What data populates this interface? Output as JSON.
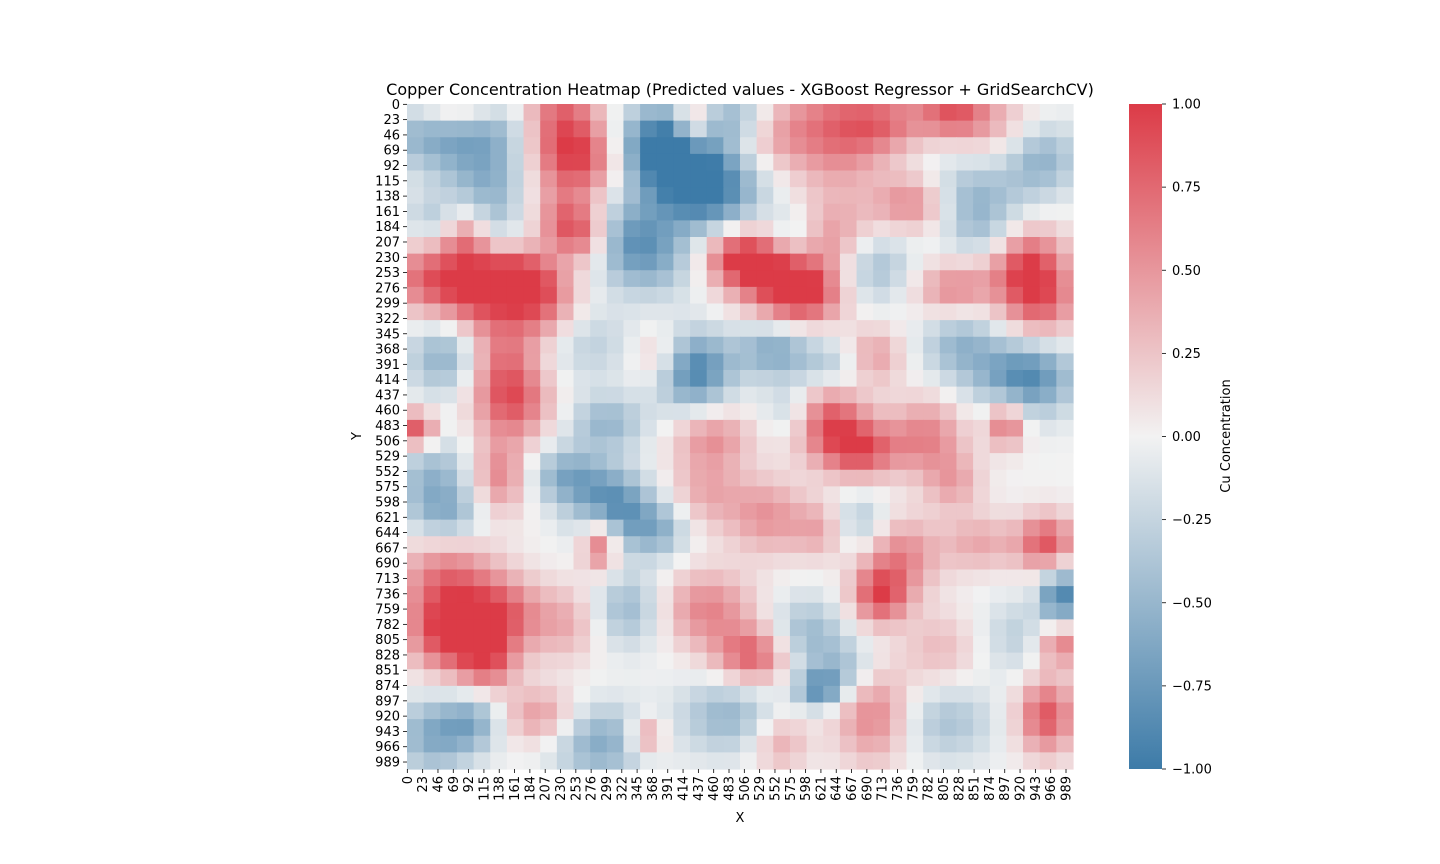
{
  "chart_data": {
    "type": "heatmap",
    "title": "Copper Concentration Heatmap (Predicted values - XGBoost Regressor + GridSearchCV)",
    "xlabel": "X",
    "ylabel": "Y",
    "x_tick_labels": [
      "0",
      "23",
      "46",
      "69",
      "92",
      "115",
      "138",
      "161",
      "184",
      "207",
      "230",
      "253",
      "276",
      "299",
      "322",
      "345",
      "368",
      "391",
      "414",
      "437",
      "460",
      "483",
      "506",
      "529",
      "552",
      "575",
      "598",
      "621",
      "644",
      "667",
      "690",
      "713",
      "736",
      "759",
      "782",
      "805",
      "828",
      "851",
      "874",
      "897",
      "920",
      "943",
      "966",
      "989"
    ],
    "y_tick_labels": [
      "0",
      "23",
      "46",
      "69",
      "92",
      "115",
      "138",
      "161",
      "184",
      "207",
      "230",
      "253",
      "276",
      "299",
      "322",
      "345",
      "368",
      "391",
      "414",
      "437",
      "460",
      "483",
      "506",
      "529",
      "552",
      "575",
      "598",
      "621",
      "644",
      "667",
      "690",
      "713",
      "736",
      "759",
      "782",
      "805",
      "828",
      "851",
      "874",
      "897",
      "920",
      "943",
      "966",
      "989"
    ],
    "x_range": [
      0,
      1000
    ],
    "y_range": [
      0,
      1000
    ],
    "y_inverted": true,
    "grid": false,
    "colorbar": {
      "label": "Cu Concentration",
      "range": [
        -1.0,
        1.0
      ],
      "tick_labels": [
        "1.00",
        "0.75",
        "0.50",
        "0.25",
        "0.00",
        "−0.25",
        "−0.50",
        "−0.75",
        "−1.00"
      ],
      "tick_values": [
        1.0,
        0.75,
        0.5,
        0.25,
        0.0,
        -0.25,
        -0.5,
        -0.75,
        -1.0
      ],
      "colormap": {
        "low": "#3d7ba8",
        "mid": "#f2f2f2",
        "high": "#dc3b47"
      }
    },
    "grid_resolution": 40,
    "field_blobs": [
      {
        "x": 40,
        "y": 40,
        "sx": 60,
        "sy": 40,
        "v": -0.6
      },
      {
        "x": 120,
        "y": 100,
        "sx": 50,
        "sy": 40,
        "v": -0.5
      },
      {
        "x": 230,
        "y": 40,
        "sx": 40,
        "sy": 80,
        "v": 0.8
      },
      {
        "x": 280,
        "y": 80,
        "sx": 40,
        "sy": 40,
        "v": 0.6
      },
      {
        "x": 140,
        "y": 30,
        "sx": 40,
        "sy": 30,
        "v": -0.3
      },
      {
        "x": 70,
        "y": 10,
        "sx": 50,
        "sy": 20,
        "v": 0.5
      },
      {
        "x": 380,
        "y": 60,
        "sx": 50,
        "sy": 40,
        "v": -0.85
      },
      {
        "x": 420,
        "y": 100,
        "sx": 60,
        "sy": 50,
        "v": -0.8
      },
      {
        "x": 460,
        "y": 140,
        "sx": 50,
        "sy": 40,
        "v": -0.6
      },
      {
        "x": 430,
        "y": 30,
        "sx": 20,
        "sy": 30,
        "v": 0.7
      },
      {
        "x": 500,
        "y": 20,
        "sx": 40,
        "sy": 20,
        "v": -0.4
      },
      {
        "x": 560,
        "y": 40,
        "sx": 40,
        "sy": 40,
        "v": 0.4
      },
      {
        "x": 650,
        "y": 40,
        "sx": 50,
        "sy": 60,
        "v": 0.7
      },
      {
        "x": 720,
        "y": 30,
        "sx": 40,
        "sy": 30,
        "v": 0.5
      },
      {
        "x": 820,
        "y": 15,
        "sx": 40,
        "sy": 25,
        "v": 0.8
      },
      {
        "x": 900,
        "y": 40,
        "sx": 50,
        "sy": 40,
        "v": 0.3
      },
      {
        "x": 950,
        "y": 80,
        "sx": 40,
        "sy": 40,
        "v": -0.6
      },
      {
        "x": 850,
        "y": 140,
        "sx": 50,
        "sy": 40,
        "v": -0.5
      },
      {
        "x": 760,
        "y": 150,
        "sx": 40,
        "sy": 30,
        "v": 0.6
      },
      {
        "x": 40,
        "y": 180,
        "sx": 30,
        "sy": 30,
        "v": -0.4
      },
      {
        "x": 90,
        "y": 200,
        "sx": 30,
        "sy": 30,
        "v": 0.6
      },
      {
        "x": 130,
        "y": 180,
        "sx": 30,
        "sy": 40,
        "v": -0.4
      },
      {
        "x": 240,
        "y": 180,
        "sx": 30,
        "sy": 30,
        "v": 0.5
      },
      {
        "x": 270,
        "y": 200,
        "sx": 30,
        "sy": 30,
        "v": 0.6
      },
      {
        "x": 330,
        "y": 200,
        "sx": 50,
        "sy": 40,
        "v": -0.6
      },
      {
        "x": 370,
        "y": 240,
        "sx": 50,
        "sy": 40,
        "v": -0.4
      },
      {
        "x": 500,
        "y": 230,
        "sx": 40,
        "sy": 30,
        "v": 0.9
      },
      {
        "x": 560,
        "y": 260,
        "sx": 50,
        "sy": 40,
        "v": 0.85
      },
      {
        "x": 600,
        "y": 290,
        "sx": 40,
        "sy": 30,
        "v": 0.7
      },
      {
        "x": 640,
        "y": 200,
        "sx": 50,
        "sy": 40,
        "v": 0.5
      },
      {
        "x": 580,
        "y": 200,
        "sx": 30,
        "sy": 30,
        "v": -0.5
      },
      {
        "x": 700,
        "y": 240,
        "sx": 40,
        "sy": 40,
        "v": -0.5
      },
      {
        "x": 820,
        "y": 280,
        "sx": 40,
        "sy": 30,
        "v": 0.6
      },
      {
        "x": 930,
        "y": 240,
        "sx": 40,
        "sy": 40,
        "v": 0.85
      },
      {
        "x": 950,
        "y": 300,
        "sx": 40,
        "sy": 40,
        "v": 0.7
      },
      {
        "x": 870,
        "y": 200,
        "sx": 40,
        "sy": 30,
        "v": -0.3
      },
      {
        "x": 30,
        "y": 260,
        "sx": 40,
        "sy": 40,
        "v": 0.7
      },
      {
        "x": 100,
        "y": 280,
        "sx": 40,
        "sy": 40,
        "v": 0.8
      },
      {
        "x": 160,
        "y": 260,
        "sx": 40,
        "sy": 30,
        "v": 0.9
      },
      {
        "x": 200,
        "y": 300,
        "sx": 40,
        "sy": 40,
        "v": 0.7
      },
      {
        "x": 60,
        "y": 380,
        "sx": 40,
        "sy": 40,
        "v": -0.6
      },
      {
        "x": 140,
        "y": 380,
        "sx": 40,
        "sy": 50,
        "v": 0.6
      },
      {
        "x": 160,
        "y": 450,
        "sx": 40,
        "sy": 40,
        "v": 0.7
      },
      {
        "x": 15,
        "y": 490,
        "sx": 20,
        "sy": 20,
        "v": 0.9
      },
      {
        "x": 270,
        "y": 360,
        "sx": 50,
        "sy": 40,
        "v": -0.3
      },
      {
        "x": 430,
        "y": 400,
        "sx": 40,
        "sy": 40,
        "v": -0.95
      },
      {
        "x": 380,
        "y": 380,
        "sx": 30,
        "sy": 30,
        "v": 0.4
      },
      {
        "x": 550,
        "y": 370,
        "sx": 40,
        "sy": 30,
        "v": -0.6
      },
      {
        "x": 640,
        "y": 400,
        "sx": 40,
        "sy": 30,
        "v": -0.4
      },
      {
        "x": 700,
        "y": 380,
        "sx": 30,
        "sy": 30,
        "v": 0.5
      },
      {
        "x": 830,
        "y": 360,
        "sx": 40,
        "sy": 40,
        "v": -0.5
      },
      {
        "x": 930,
        "y": 410,
        "sx": 50,
        "sy": 40,
        "v": -0.9
      },
      {
        "x": 900,
        "y": 480,
        "sx": 20,
        "sy": 25,
        "v": 0.8
      },
      {
        "x": 630,
        "y": 470,
        "sx": 40,
        "sy": 40,
        "v": 0.85
      },
      {
        "x": 680,
        "y": 520,
        "sx": 40,
        "sy": 30,
        "v": 0.85
      },
      {
        "x": 580,
        "y": 460,
        "sx": 30,
        "sy": 30,
        "v": -0.4
      },
      {
        "x": 460,
        "y": 500,
        "sx": 40,
        "sy": 30,
        "v": 0.5
      },
      {
        "x": 780,
        "y": 500,
        "sx": 40,
        "sy": 40,
        "v": 0.6
      },
      {
        "x": 820,
        "y": 570,
        "sx": 30,
        "sy": 30,
        "v": 0.4
      },
      {
        "x": 300,
        "y": 480,
        "sx": 40,
        "sy": 30,
        "v": -0.5
      },
      {
        "x": 240,
        "y": 560,
        "sx": 40,
        "sy": 30,
        "v": -0.6
      },
      {
        "x": 310,
        "y": 610,
        "sx": 40,
        "sy": 40,
        "v": -0.9
      },
      {
        "x": 380,
        "y": 640,
        "sx": 30,
        "sy": 30,
        "v": -0.5
      },
      {
        "x": 290,
        "y": 660,
        "sx": 20,
        "sy": 30,
        "v": 0.9
      },
      {
        "x": 40,
        "y": 560,
        "sx": 40,
        "sy": 40,
        "v": -0.5
      },
      {
        "x": 60,
        "y": 620,
        "sx": 40,
        "sy": 30,
        "v": -0.5
      },
      {
        "x": 140,
        "y": 560,
        "sx": 30,
        "sy": 40,
        "v": 0.6
      },
      {
        "x": 450,
        "y": 580,
        "sx": 40,
        "sy": 40,
        "v": 0.4
      },
      {
        "x": 540,
        "y": 620,
        "sx": 40,
        "sy": 40,
        "v": 0.5
      },
      {
        "x": 620,
        "y": 640,
        "sx": 30,
        "sy": 30,
        "v": 0.4
      },
      {
        "x": 680,
        "y": 630,
        "sx": 30,
        "sy": 30,
        "v": -0.4
      },
      {
        "x": 740,
        "y": 680,
        "sx": 40,
        "sy": 40,
        "v": 0.6
      },
      {
        "x": 710,
        "y": 740,
        "sx": 30,
        "sy": 30,
        "v": 0.85
      },
      {
        "x": 860,
        "y": 660,
        "sx": 40,
        "sy": 30,
        "v": 0.4
      },
      {
        "x": 960,
        "y": 660,
        "sx": 30,
        "sy": 30,
        "v": 0.85
      },
      {
        "x": 980,
        "y": 740,
        "sx": 20,
        "sy": 30,
        "v": -0.95
      },
      {
        "x": 60,
        "y": 720,
        "sx": 50,
        "sy": 50,
        "v": 0.7
      },
      {
        "x": 60,
        "y": 800,
        "sx": 40,
        "sy": 40,
        "v": 0.85
      },
      {
        "x": 140,
        "y": 770,
        "sx": 40,
        "sy": 40,
        "v": 0.8
      },
      {
        "x": 120,
        "y": 840,
        "sx": 30,
        "sy": 30,
        "v": 0.7
      },
      {
        "x": 240,
        "y": 780,
        "sx": 40,
        "sy": 40,
        "v": 0.4
      },
      {
        "x": 330,
        "y": 760,
        "sx": 40,
        "sy": 40,
        "v": -0.5
      },
      {
        "x": 450,
        "y": 760,
        "sx": 50,
        "sy": 40,
        "v": 0.6
      },
      {
        "x": 520,
        "y": 830,
        "sx": 40,
        "sy": 30,
        "v": 0.8
      },
      {
        "x": 600,
        "y": 800,
        "sx": 40,
        "sy": 40,
        "v": -0.5
      },
      {
        "x": 660,
        "y": 850,
        "sx": 30,
        "sy": 30,
        "v": -0.4
      },
      {
        "x": 800,
        "y": 820,
        "sx": 40,
        "sy": 40,
        "v": 0.3
      },
      {
        "x": 920,
        "y": 800,
        "sx": 40,
        "sy": 40,
        "v": -0.3
      },
      {
        "x": 980,
        "y": 810,
        "sx": 25,
        "sy": 25,
        "v": 0.7
      },
      {
        "x": 620,
        "y": 880,
        "sx": 25,
        "sy": 20,
        "v": -0.8
      },
      {
        "x": 700,
        "y": 920,
        "sx": 40,
        "sy": 50,
        "v": 0.6
      },
      {
        "x": 810,
        "y": 930,
        "sx": 50,
        "sy": 40,
        "v": -0.4
      },
      {
        "x": 960,
        "y": 920,
        "sx": 30,
        "sy": 40,
        "v": 0.85
      },
      {
        "x": 40,
        "y": 950,
        "sx": 40,
        "sy": 40,
        "v": -0.6
      },
      {
        "x": 100,
        "y": 930,
        "sx": 30,
        "sy": 30,
        "v": -0.5
      },
      {
        "x": 200,
        "y": 920,
        "sx": 40,
        "sy": 30,
        "v": 0.5
      },
      {
        "x": 290,
        "y": 960,
        "sx": 50,
        "sy": 40,
        "v": -0.6
      },
      {
        "x": 360,
        "y": 950,
        "sx": 20,
        "sy": 20,
        "v": 0.6
      },
      {
        "x": 480,
        "y": 920,
        "sx": 50,
        "sy": 40,
        "v": -0.5
      },
      {
        "x": 560,
        "y": 960,
        "sx": 30,
        "sy": 30,
        "v": 0.4
      }
    ]
  }
}
